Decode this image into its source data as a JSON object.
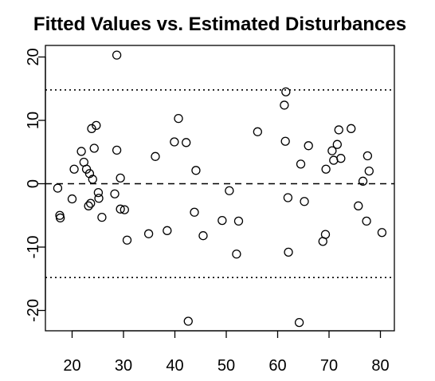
{
  "chart_data": {
    "type": "scatter",
    "title": "Fitted Values vs. Estimated Disturbances",
    "xlabel": "",
    "ylabel": "",
    "xlim": [
      15,
      82
    ],
    "ylim": [
      -24,
      22
    ],
    "x_ticks": [
      20,
      30,
      40,
      50,
      60,
      70,
      80
    ],
    "x_tick_labels": [
      "20",
      "30",
      "40",
      "50",
      "60",
      "70",
      "80"
    ],
    "y_ticks": [
      -20,
      -10,
      0,
      10,
      20
    ],
    "y_tick_labels": [
      "-20",
      "-10",
      "0",
      "10",
      "20"
    ],
    "grid": false,
    "reference_lines": [
      {
        "y": 0,
        "style": "dashed"
      },
      {
        "y": 14.8,
        "style": "dotted"
      },
      {
        "y": -14.8,
        "style": "dotted"
      }
    ],
    "points": [
      {
        "x": 17.2,
        "y": -0.7
      },
      {
        "x": 17.6,
        "y": -5.0
      },
      {
        "x": 17.7,
        "y": -5.4
      },
      {
        "x": 20.0,
        "y": -2.4
      },
      {
        "x": 20.4,
        "y": 2.3
      },
      {
        "x": 21.8,
        "y": 5.1
      },
      {
        "x": 22.3,
        "y": 3.4
      },
      {
        "x": 22.8,
        "y": 2.3
      },
      {
        "x": 23.2,
        "y": -3.5
      },
      {
        "x": 23.4,
        "y": 1.6
      },
      {
        "x": 23.6,
        "y": -3.1
      },
      {
        "x": 23.8,
        "y": 8.7
      },
      {
        "x": 24.0,
        "y": 0.7
      },
      {
        "x": 24.3,
        "y": 5.6
      },
      {
        "x": 24.7,
        "y": 9.2
      },
      {
        "x": 25.1,
        "y": -1.4
      },
      {
        "x": 25.2,
        "y": -2.3
      },
      {
        "x": 25.8,
        "y": -5.3
      },
      {
        "x": 28.3,
        "y": -1.6
      },
      {
        "x": 28.7,
        "y": 5.3
      },
      {
        "x": 28.7,
        "y": 20.3
      },
      {
        "x": 29.4,
        "y": 0.9
      },
      {
        "x": 29.4,
        "y": -4.0
      },
      {
        "x": 30.2,
        "y": -4.1
      },
      {
        "x": 30.7,
        "y": -8.9
      },
      {
        "x": 34.9,
        "y": -7.9
      },
      {
        "x": 36.2,
        "y": 4.3
      },
      {
        "x": 38.5,
        "y": -7.4
      },
      {
        "x": 39.9,
        "y": 6.6
      },
      {
        "x": 40.7,
        "y": 10.3
      },
      {
        "x": 42.2,
        "y": 6.5
      },
      {
        "x": 42.6,
        "y": -21.7
      },
      {
        "x": 43.8,
        "y": -4.5
      },
      {
        "x": 44.1,
        "y": 2.1
      },
      {
        "x": 45.5,
        "y": -8.2
      },
      {
        "x": 49.2,
        "y": -5.8
      },
      {
        "x": 50.6,
        "y": -1.1
      },
      {
        "x": 52.0,
        "y": -11.1
      },
      {
        "x": 52.4,
        "y": -5.9
      },
      {
        "x": 56.1,
        "y": 8.2
      },
      {
        "x": 61.3,
        "y": 12.4
      },
      {
        "x": 61.5,
        "y": 6.7
      },
      {
        "x": 61.6,
        "y": 14.5
      },
      {
        "x": 62.0,
        "y": -2.2
      },
      {
        "x": 62.1,
        "y": -10.8
      },
      {
        "x": 64.2,
        "y": -21.9
      },
      {
        "x": 64.5,
        "y": 3.1
      },
      {
        "x": 65.2,
        "y": -2.8
      },
      {
        "x": 66.0,
        "y": 6.0
      },
      {
        "x": 68.8,
        "y": -9.1
      },
      {
        "x": 69.3,
        "y": -8.0
      },
      {
        "x": 69.4,
        "y": 2.3
      },
      {
        "x": 70.6,
        "y": 5.2
      },
      {
        "x": 70.9,
        "y": 3.7
      },
      {
        "x": 71.6,
        "y": 6.2
      },
      {
        "x": 71.9,
        "y": 8.5
      },
      {
        "x": 72.3,
        "y": 4.0
      },
      {
        "x": 74.3,
        "y": 8.7
      },
      {
        "x": 75.7,
        "y": -3.5
      },
      {
        "x": 76.6,
        "y": 0.4
      },
      {
        "x": 77.3,
        "y": -5.9
      },
      {
        "x": 77.5,
        "y": 4.4
      },
      {
        "x": 77.8,
        "y": 2.0
      },
      {
        "x": 80.3,
        "y": -7.7
      }
    ]
  }
}
